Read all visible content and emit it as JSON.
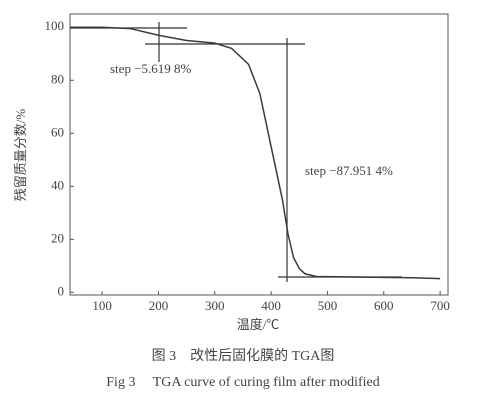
{
  "chart_data": {
    "type": "line",
    "caption": [
      "图 3　改性后固化膜的 TGA图",
      "Fig 3　 TGA curve of curing film after modified"
    ],
    "xlabel": "温度/℃",
    "ylabel": "残留质量分数/%",
    "x": [
      43,
      100,
      150,
      200,
      250,
      300,
      330,
      360,
      380,
      400,
      410,
      420,
      430,
      440,
      450,
      460,
      480,
      550,
      650,
      700
    ],
    "series": [
      {
        "color": "#3a3a3a",
        "values": [
          100,
          100,
          99.5,
          97,
          95,
          94,
          92,
          86,
          75,
          55,
          45,
          35,
          22,
          13,
          9,
          7,
          6,
          5.8,
          5.5,
          5.2
        ]
      }
    ],
    "xlim": [
      43,
      714
    ],
    "ylim": [
      -1,
      105
    ],
    "xticks": [
      100,
      200,
      300,
      400,
      500,
      600,
      700
    ],
    "yticks": [
      0,
      20,
      40,
      60,
      80,
      100
    ],
    "annotations": [
      "step −5.619 8%",
      "step −87.951 4%"
    ]
  }
}
